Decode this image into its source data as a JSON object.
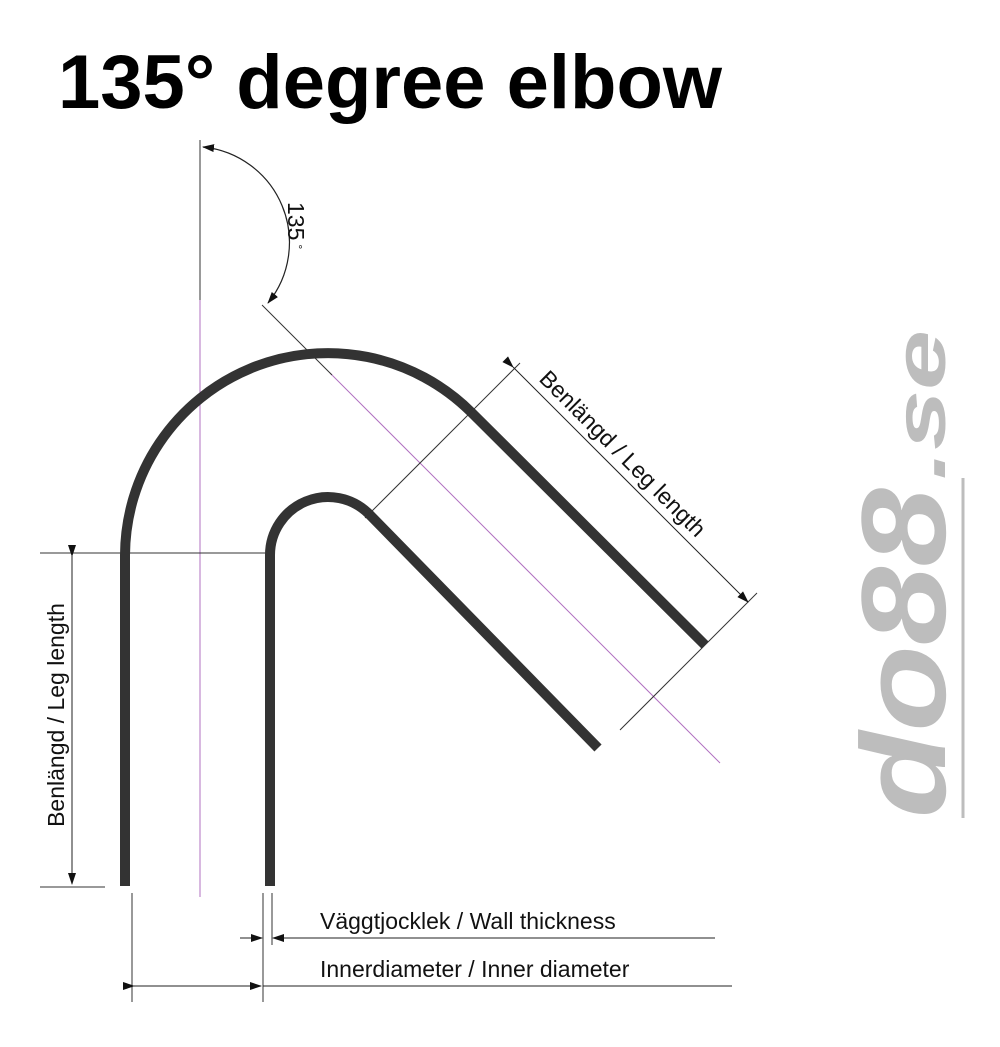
{
  "title": "135° degree elbow",
  "angle_label": "135",
  "angle_unit": "°",
  "leg_length_label": "Benlängd / Leg length",
  "wall_thickness_label": "Väggtjocklek / Wall thickness",
  "inner_diameter_label": "Innerdiameter / Inner diameter",
  "logo": {
    "text_main": "do88",
    "text_suffix": ".se"
  },
  "colors": {
    "pipe": "#333333",
    "centerline": "#b070c0",
    "dimension": "#222222",
    "logo": "#bdbdbd"
  }
}
